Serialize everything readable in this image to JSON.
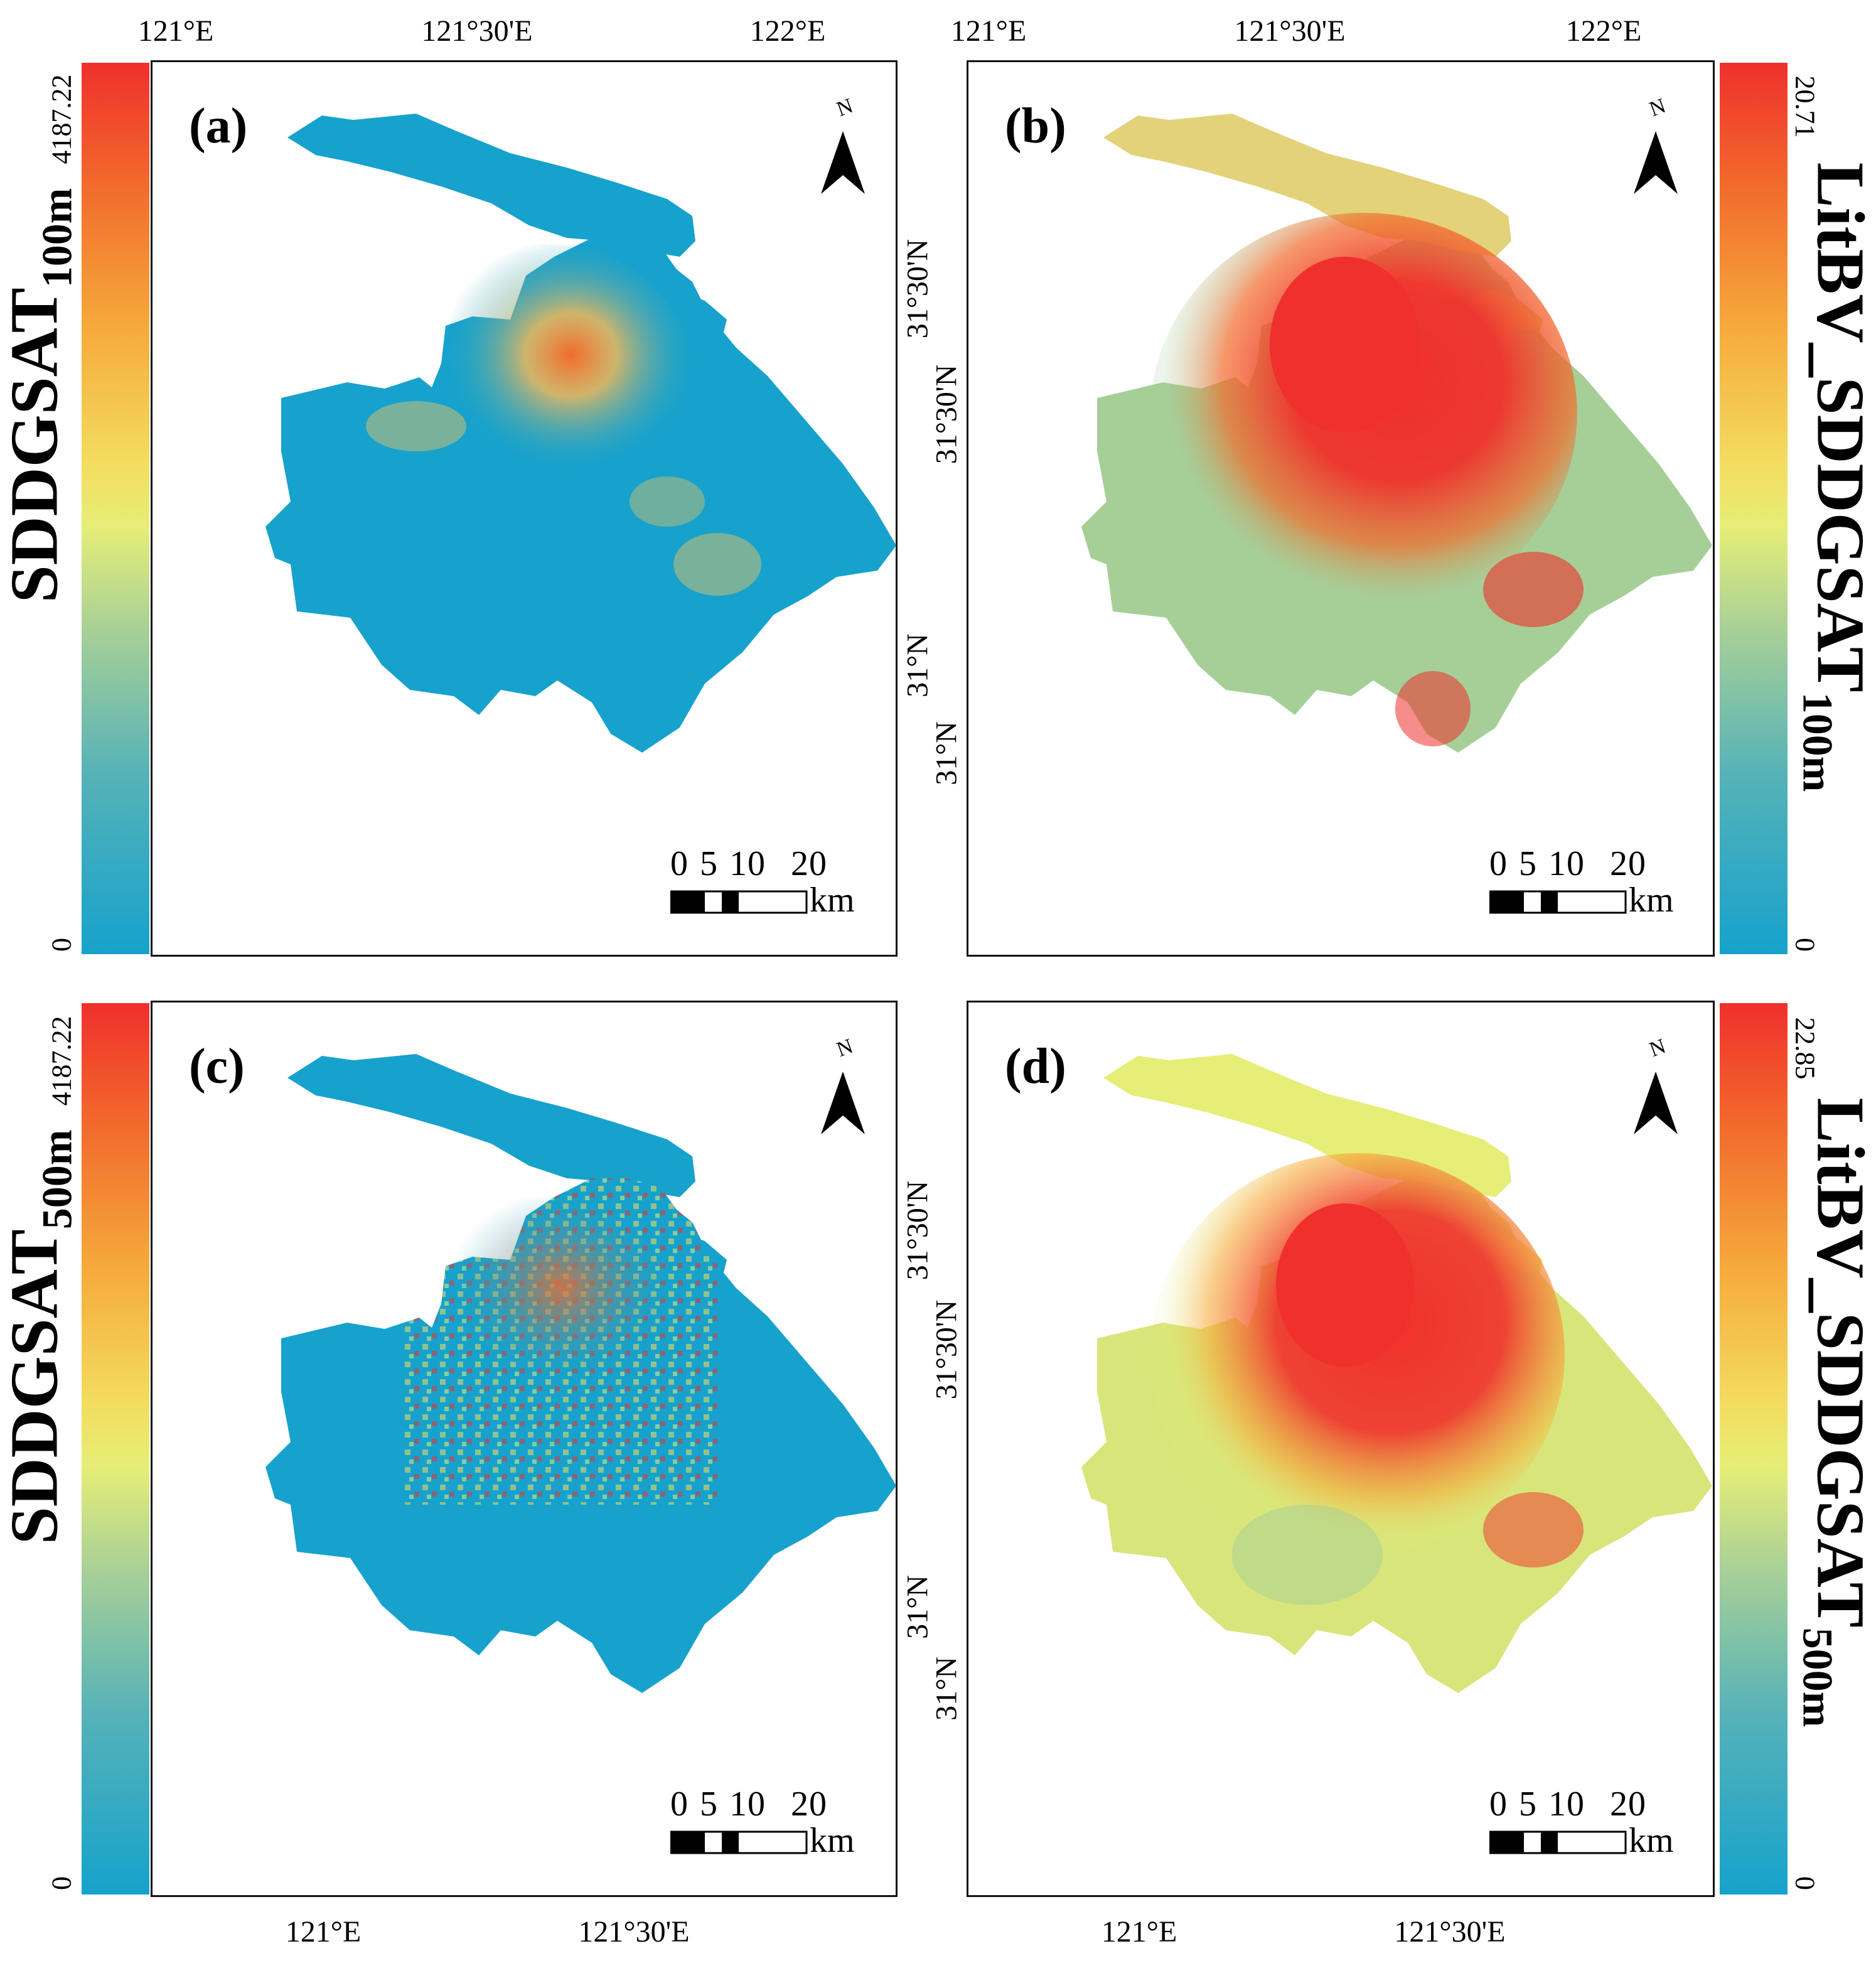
{
  "panels": {
    "a": {
      "label": "(a)"
    },
    "b": {
      "label": "(b)"
    },
    "c": {
      "label": "(c)"
    },
    "d": {
      "label": "(d)"
    }
  },
  "north_label": "N",
  "scale": {
    "n0": "0",
    "n1": "5",
    "n2": "10",
    "n3": "20",
    "unit": "km"
  },
  "colorbars": {
    "a": {
      "max": "4187.22",
      "min": "0",
      "title_main": "SDDGSAT",
      "title_sub": "100m"
    },
    "b": {
      "max": "20.71",
      "min": "0",
      "title_main": "LitBV_SDDGSAT",
      "title_sub": "100m"
    },
    "c": {
      "max": "4187.22",
      "min": "0",
      "title_main": "SDDGSAT",
      "title_sub": "500m"
    },
    "d": {
      "max": "22.85",
      "min": "0",
      "title_main": "LitBV_SDDGSAT",
      "title_sub": "500m"
    }
  },
  "axes": {
    "top_lon": [
      "121°E",
      "121°30'E",
      "122°E"
    ],
    "bottom_lon": [
      "121°E",
      "121°30'E"
    ],
    "mid_lat": [
      "31°30'N",
      "31°N"
    ]
  },
  "colors": {
    "low": "#16a2cc",
    "mid": "#e6ee77",
    "high": "#f0302c",
    "water": "#ffffff"
  }
}
